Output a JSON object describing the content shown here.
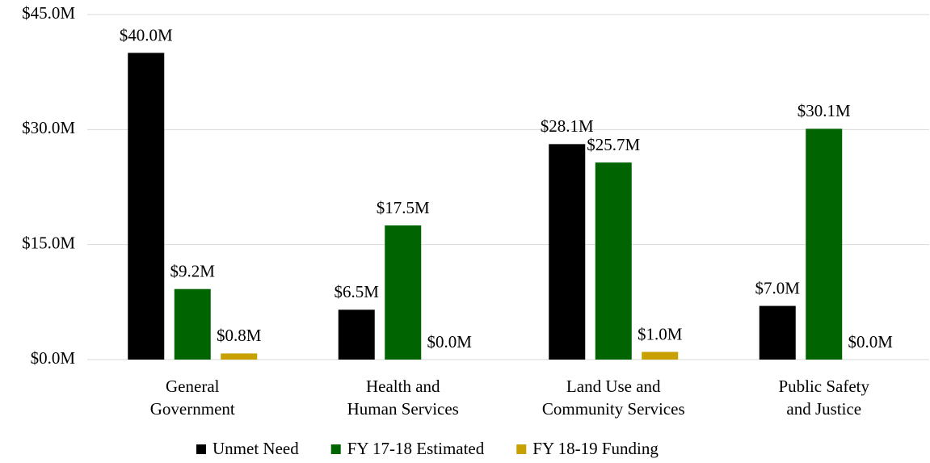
{
  "chart_data": {
    "type": "bar",
    "categories": [
      "General\nGovernment",
      "Health and\nHuman Services",
      "Land Use and\nCommunity Services",
      "Public Safety\nand Justice"
    ],
    "series": [
      {
        "name": "Unmet Need",
        "color": "#000000",
        "values": [
          40.0,
          6.5,
          28.1,
          7.0
        ],
        "value_labels": [
          "$40.0M",
          "$6.5M",
          "$28.1M",
          "$7.0M"
        ]
      },
      {
        "name": "FY 17-18 Estimated",
        "color": "#006400",
        "values": [
          9.2,
          17.5,
          25.7,
          30.1
        ],
        "value_labels": [
          "$9.2M",
          "$17.5M",
          "$25.7M",
          "$30.1M"
        ]
      },
      {
        "name": "FY 18-19 Funding",
        "color": "#c8a000",
        "values": [
          0.8,
          0.0,
          1.0,
          0.0
        ],
        "value_labels": [
          "$0.8M",
          "$0.0M",
          "$1.0M",
          "$0.0M"
        ]
      }
    ],
    "ylim": [
      0,
      45
    ],
    "yticks": [
      {
        "value": 0,
        "label": "$0.0M"
      },
      {
        "value": 15,
        "label": "$15.0M"
      },
      {
        "value": 30,
        "label": "$30.0M"
      },
      {
        "value": 45,
        "label": "$45.0M"
      }
    ],
    "grid": true,
    "legend": "bottom"
  }
}
